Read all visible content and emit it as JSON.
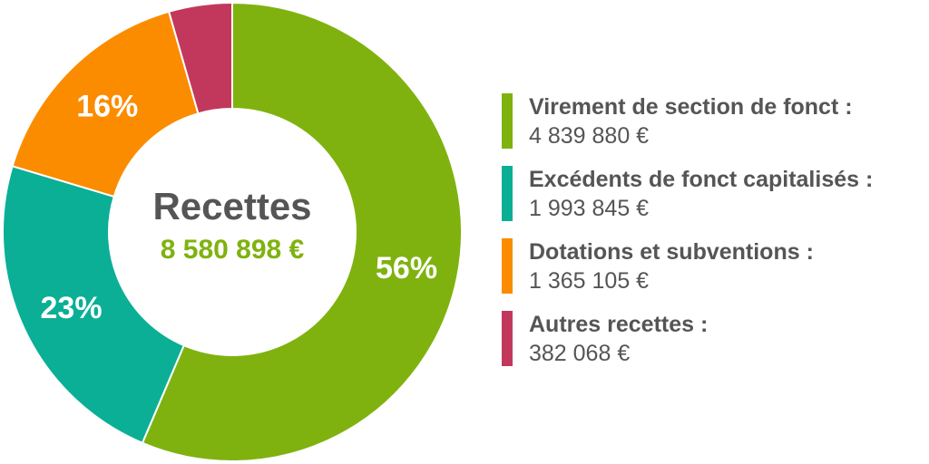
{
  "chart_data": {
    "type": "pie",
    "variant": "donut",
    "center_title": "Recettes",
    "center_total": "8 580 898 €",
    "categories": [
      "Virement de section de fonct :",
      "Excédents de fonct capitalisés :",
      "Dotations et subventions :",
      "Autres recettes :"
    ],
    "values": [
      4839880,
      1993845,
      1365105,
      382068
    ],
    "value_labels": [
      "4 839 880 €",
      "1 993 845 €",
      "1 365 105 €",
      "382 068 €"
    ],
    "percent_labels": [
      "56%",
      "23%",
      "16%",
      ""
    ],
    "colors": [
      "#7fb20f",
      "#0aaf96",
      "#fb8c00",
      "#c2385d"
    ],
    "start": "top, clockwise",
    "legend": "right"
  },
  "colors": {
    "title": "#555555",
    "total": "#7fb20f",
    "text": "#555555"
  }
}
